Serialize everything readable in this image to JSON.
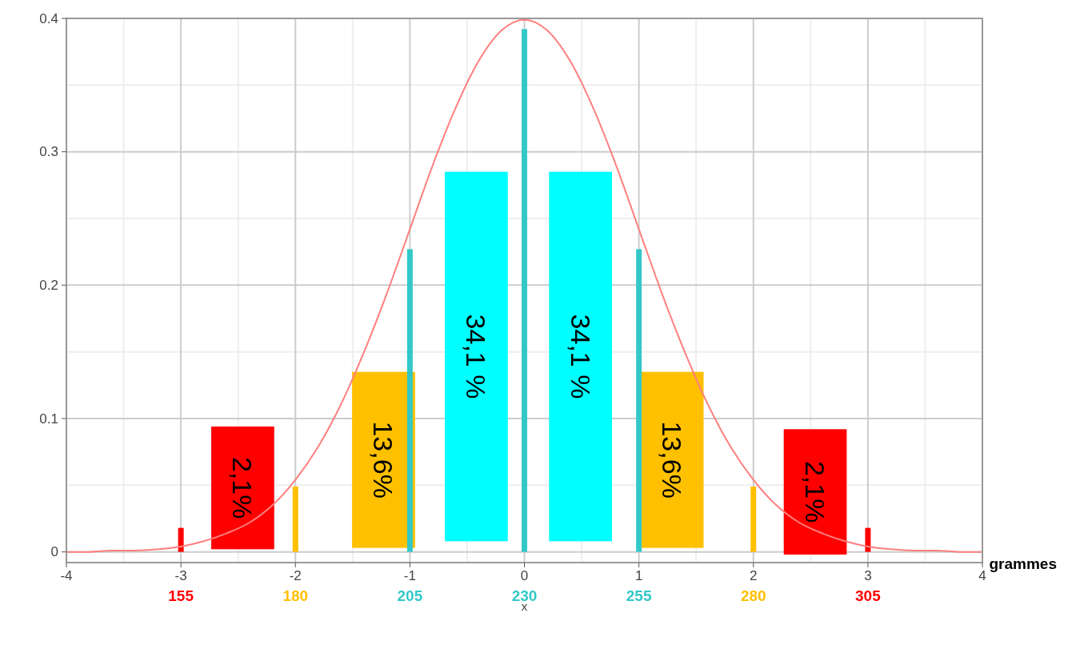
{
  "chart_data": {
    "type": "line",
    "xlabel": "x",
    "x2label": "grammes",
    "xlim": [
      -4,
      4
    ],
    "xticks": [
      -4,
      -3,
      -2,
      -1,
      0,
      1,
      2,
      3,
      4
    ],
    "x2lim": [
      130,
      330
    ],
    "x2ticks": [
      155,
      180,
      205,
      230,
      255,
      280,
      305
    ],
    "ylim": [
      -0.008,
      0.4
    ],
    "yticks": [
      0,
      0.1,
      0.2,
      0.3,
      0.4
    ],
    "grid": true,
    "series": [
      {
        "color": "#ff7f7f",
        "x": [
          -4,
          -3.8,
          -3.6,
          -3.4,
          -3.2,
          -3,
          -2.8,
          -2.6,
          -2.4,
          -2.2,
          -2,
          -1.8,
          -1.6,
          -1.4,
          -1.2,
          -1,
          -0.8,
          -0.6,
          -0.4,
          -0.2,
          0,
          0.2,
          0.4,
          0.6,
          0.8,
          1,
          1.2,
          1.4,
          1.6,
          1.8,
          2,
          2.2,
          2.4,
          2.6,
          2.8,
          3,
          3.2,
          3.4,
          3.6,
          3.8,
          4
        ],
        "values": [
          0,
          0,
          0.001,
          0.001,
          0.002,
          0.004,
          0.008,
          0.014,
          0.022,
          0.035,
          0.054,
          0.079,
          0.111,
          0.15,
          0.194,
          0.242,
          0.29,
          0.333,
          0.368,
          0.391,
          0.399,
          0.391,
          0.368,
          0.333,
          0.29,
          0.242,
          0.194,
          0.15,
          0.111,
          0.079,
          0.054,
          0.035,
          0.022,
          0.014,
          0.008,
          0.004,
          0.002,
          0.001,
          0.001,
          0,
          0
        ]
      },
      {
        "type": "bar",
        "x": [
          -3,
          -2,
          -1,
          0,
          1,
          2,
          3
        ],
        "values": [
          0.018,
          0.049,
          0.227,
          0.392,
          0.227,
          0.049,
          0.018
        ],
        "colors": [
          "#ff0000",
          "#ffc000",
          "#33c8c8",
          "#33c8c8",
          "#33c8c8",
          "#ffc000",
          "#ff0000"
        ]
      },
      {
        "type": "bar",
        "x": [
          -2.46,
          -1.23,
          -0.42,
          0.49,
          1.29,
          2.54
        ],
        "base": [
          0.002,
          0.003,
          0.008,
          0.008,
          0.003,
          -0.002
        ],
        "values": [
          0.092,
          0.132,
          0.277,
          0.277,
          0.132,
          0.094
        ],
        "colors": [
          "#ff0000",
          "#ffc000",
          "#00ffff",
          "#00ffff",
          "#ffc000",
          "#ff0000"
        ]
      }
    ],
    "annotations": [
      "2,1%",
      "13,6%",
      "34,1 %",
      "34,1 %",
      "13,6%",
      "2,1%"
    ]
  }
}
